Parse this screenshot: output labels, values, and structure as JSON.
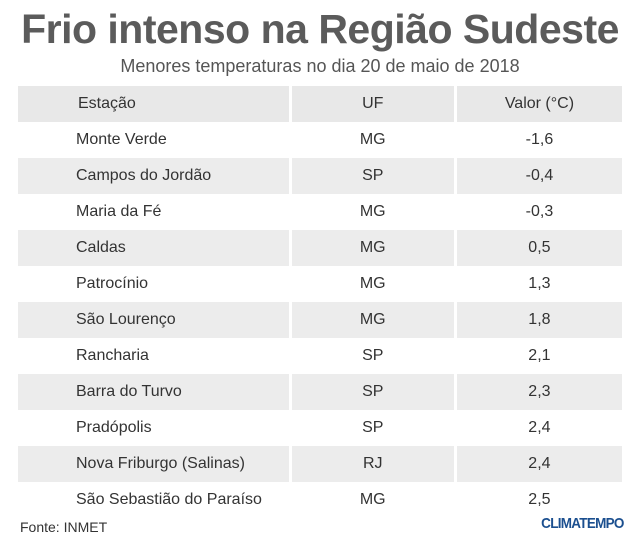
{
  "title": "Frio intenso na Região Sudeste",
  "subtitle": "Menores temperaturas no dia 20 de maio de 2018",
  "table": {
    "headers": [
      "Estação",
      "UF",
      "Valor (°C)"
    ],
    "rows": [
      [
        "Monte Verde",
        "MG",
        "-1,6"
      ],
      [
        "Campos do Jordão",
        "SP",
        "-0,4"
      ],
      [
        "Maria da Fé",
        "MG",
        "-0,3"
      ],
      [
        "Caldas",
        "MG",
        "0,5"
      ],
      [
        "Patrocínio",
        "MG",
        "1,3"
      ],
      [
        "São Lourenço",
        "MG",
        "1,8"
      ],
      [
        "Rancharia",
        "SP",
        "2,1"
      ],
      [
        "Barra do Turvo",
        "SP",
        "2,3"
      ],
      [
        "Pradópolis",
        "SP",
        "2,4"
      ],
      [
        "Nova Friburgo (Salinas)",
        "RJ",
        "2,4"
      ],
      [
        "São Sebastião do Paraíso",
        "MG",
        "2,5"
      ]
    ]
  },
  "source": "Fonte: INMET",
  "brand": "CLIMATEMPO",
  "colors": {
    "title": "#5b5b5b",
    "row_shade": "#ececec",
    "brand": "#1b4f8f"
  }
}
